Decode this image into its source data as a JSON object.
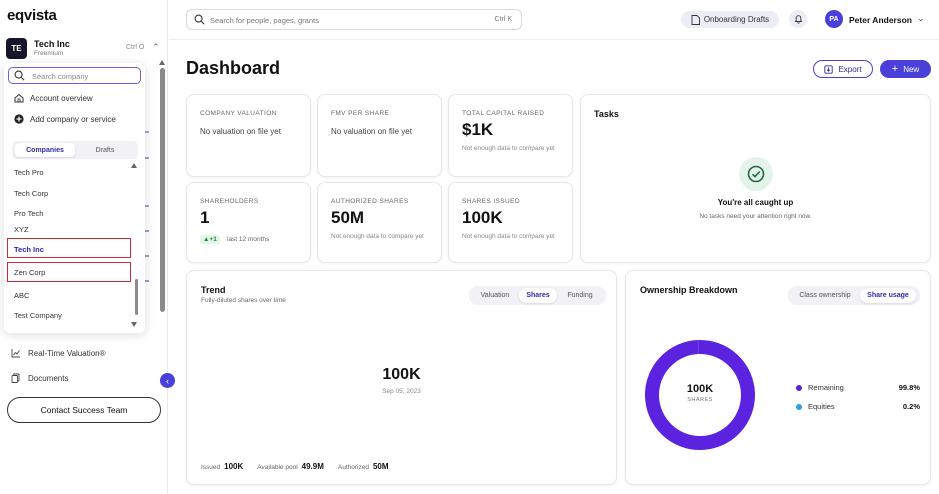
{
  "app": {
    "logo": "eqvista"
  },
  "company": {
    "initials": "TE",
    "name": "Tech Inc",
    "plan": "Freemium",
    "shortcut": "Ctrl O"
  },
  "company_menu": {
    "search_placeholder": "Search company",
    "account_overview": "Account overview",
    "add_company": "Add company or service",
    "tabs": [
      {
        "label": "Companies",
        "active": true
      },
      {
        "label": "Drafts",
        "active": false
      }
    ],
    "companies": [
      {
        "name": "Tech Pro"
      },
      {
        "name": "Tech Corp"
      },
      {
        "name": "Pro Tech"
      },
      {
        "name": "XYZ"
      },
      {
        "name": "Tech Inc",
        "current": true,
        "highlighted": true
      },
      {
        "name": "Zen Corp",
        "highlighted": true
      },
      {
        "name": "ABC"
      },
      {
        "name": "Test Company"
      }
    ]
  },
  "sidebar": {
    "nav": [
      {
        "label": "Real-Time Valuation®",
        "icon": "chart-line-icon"
      },
      {
        "label": "Documents",
        "icon": "documents-icon"
      }
    ],
    "contact_button": "Contact Success Team"
  },
  "topbar": {
    "search_placeholder": "Search for people, pages, grants",
    "search_shortcut": "Ctrl K",
    "drafts_button": "Onboarding Drafts",
    "user": {
      "initials": "PA",
      "name": "Peter Anderson"
    }
  },
  "page": {
    "title": "Dashboard",
    "export_label": "Export",
    "new_label": "New"
  },
  "metrics": {
    "company_valuation": {
      "label": "COMPANY VALUATION",
      "value": "No valuation on file yet"
    },
    "fmv_per_share": {
      "label": "FMV PER SHARE",
      "value": "No valuation on file yet"
    },
    "total_capital_raised": {
      "label": "TOTAL CAPITAL RAISED",
      "value": "$1K",
      "note": "Not enough data to compare yet"
    },
    "shareholders": {
      "label": "SHAREHOLDERS",
      "value": "1",
      "badge": "▲+1",
      "badge_note": "last 12 months"
    },
    "authorized_shares": {
      "label": "AUTHORIZED SHARES",
      "value": "50M",
      "note": "Not enough data to compare yet"
    },
    "shares_issued": {
      "label": "SHARES ISSUED",
      "value": "100K",
      "note": "Not enough data to compare yet"
    }
  },
  "tasks": {
    "title": "Tasks",
    "heading": "You're all caught up",
    "message": "No tasks need your attention right now."
  },
  "trend": {
    "title": "Trend",
    "subtitle": "Fully-diluted shares over time",
    "tabs": [
      {
        "label": "Valuation",
        "active": false
      },
      {
        "label": "Shares",
        "active": true
      },
      {
        "label": "Funding",
        "active": false
      }
    ],
    "value": "100K",
    "date": "Sep 05, 2023",
    "footer": [
      {
        "label": "Issued",
        "value": "100K"
      },
      {
        "label": "Available pool",
        "value": "49.9M"
      },
      {
        "label": "Authorized",
        "value": "50M"
      }
    ]
  },
  "ownership": {
    "title": "Ownership Breakdown",
    "tabs": [
      {
        "label": "Class ownership",
        "active": false
      },
      {
        "label": "Share usage",
        "active": true
      }
    ],
    "center_value": "100K",
    "center_unit": "SHARES",
    "legend": [
      {
        "label": "Remaining",
        "pct": "99.8%",
        "color": "#5b22e0"
      },
      {
        "label": "Equities",
        "pct": "0.2%",
        "color": "#2a9fe8"
      }
    ],
    "segments": [
      {
        "name": "Remaining",
        "value": 99.8,
        "color": "#5b22e0"
      },
      {
        "name": "Equities",
        "value": 0.2,
        "color": "#2a9fe8"
      }
    ]
  },
  "colors": {
    "accent": "#4a3fd8",
    "highlight_border": "#cc2b3a"
  }
}
